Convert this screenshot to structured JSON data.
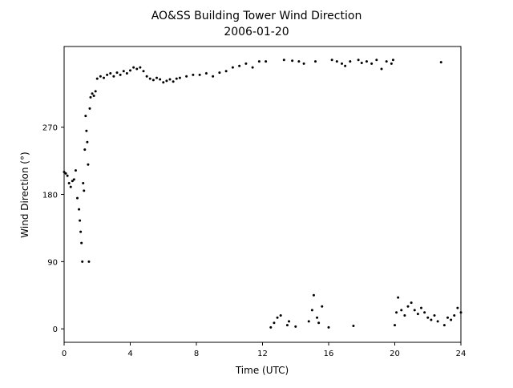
{
  "chart_data": {
    "type": "scatter",
    "title": "AO&SS Building Tower Wind Direction",
    "subtitle": "2006-01-20",
    "x_label": "Time (UTC)",
    "y_label": "Wind Direction (°)",
    "xlim": [
      0,
      24
    ],
    "xticks": [
      0,
      4,
      8,
      12,
      16,
      20,
      24
    ],
    "ylim": [
      -18,
      378
    ],
    "yticks": [
      0,
      90,
      180,
      270
    ],
    "color": "#000000",
    "x": [
      0.0,
      0.1,
      0.2,
      0.3,
      0.4,
      0.5,
      0.6,
      0.7,
      0.8,
      0.9,
      0.95,
      1.0,
      1.05,
      1.1,
      1.15,
      1.2,
      1.25,
      1.3,
      1.35,
      1.4,
      1.45,
      1.5,
      1.55,
      1.6,
      1.7,
      1.8,
      1.9,
      2.0,
      2.2,
      2.4,
      2.6,
      2.8,
      3.0,
      3.2,
      3.4,
      3.6,
      3.8,
      4.0,
      4.2,
      4.4,
      4.6,
      4.8,
      5.0,
      5.2,
      5.4,
      5.6,
      5.8,
      6.0,
      6.2,
      6.4,
      6.6,
      6.8,
      7.0,
      7.4,
      7.8,
      8.2,
      8.6,
      9.0,
      9.4,
      9.8,
      10.2,
      10.6,
      11.0,
      11.4,
      11.8,
      12.2,
      12.5,
      12.7,
      12.9,
      13.1,
      13.3,
      13.5,
      13.6,
      13.8,
      14.0,
      14.2,
      14.5,
      14.8,
      15.0,
      15.1,
      15.2,
      15.3,
      15.4,
      15.6,
      16.0,
      16.2,
      16.5,
      16.8,
      17.0,
      17.3,
      17.5,
      17.8,
      18.0,
      18.3,
      18.6,
      18.9,
      19.2,
      19.5,
      19.8,
      19.9,
      20.0,
      20.1,
      20.2,
      20.4,
      20.6,
      20.8,
      21.0,
      21.2,
      21.4,
      21.6,
      21.8,
      22.0,
      22.2,
      22.4,
      22.6,
      22.8,
      23.0,
      23.2,
      23.4,
      23.6,
      23.8,
      24.0
    ],
    "values": [
      210,
      208,
      205,
      195,
      190,
      198,
      200,
      212,
      175,
      160,
      145,
      130,
      115,
      90,
      195,
      185,
      240,
      285,
      265,
      250,
      220,
      90,
      295,
      310,
      315,
      312,
      318,
      335,
      338,
      336,
      340,
      342,
      338,
      343,
      340,
      345,
      342,
      346,
      350,
      348,
      350,
      345,
      338,
      335,
      333,
      336,
      334,
      330,
      332,
      334,
      331,
      335,
      336,
      338,
      340,
      340,
      342,
      338,
      343,
      345,
      350,
      352,
      355,
      350,
      358,
      358,
      2,
      8,
      15,
      18,
      360,
      5,
      10,
      359,
      3,
      358,
      355,
      10,
      25,
      45,
      358,
      15,
      8,
      30,
      2,
      360,
      358,
      355,
      352,
      358,
      4,
      360,
      356,
      358,
      355,
      360,
      348,
      358,
      355,
      360,
      5,
      22,
      42,
      25,
      18,
      30,
      35,
      25,
      20,
      28,
      22,
      15,
      12,
      18,
      10,
      357,
      5,
      15,
      12,
      18,
      28,
      22
    ]
  }
}
